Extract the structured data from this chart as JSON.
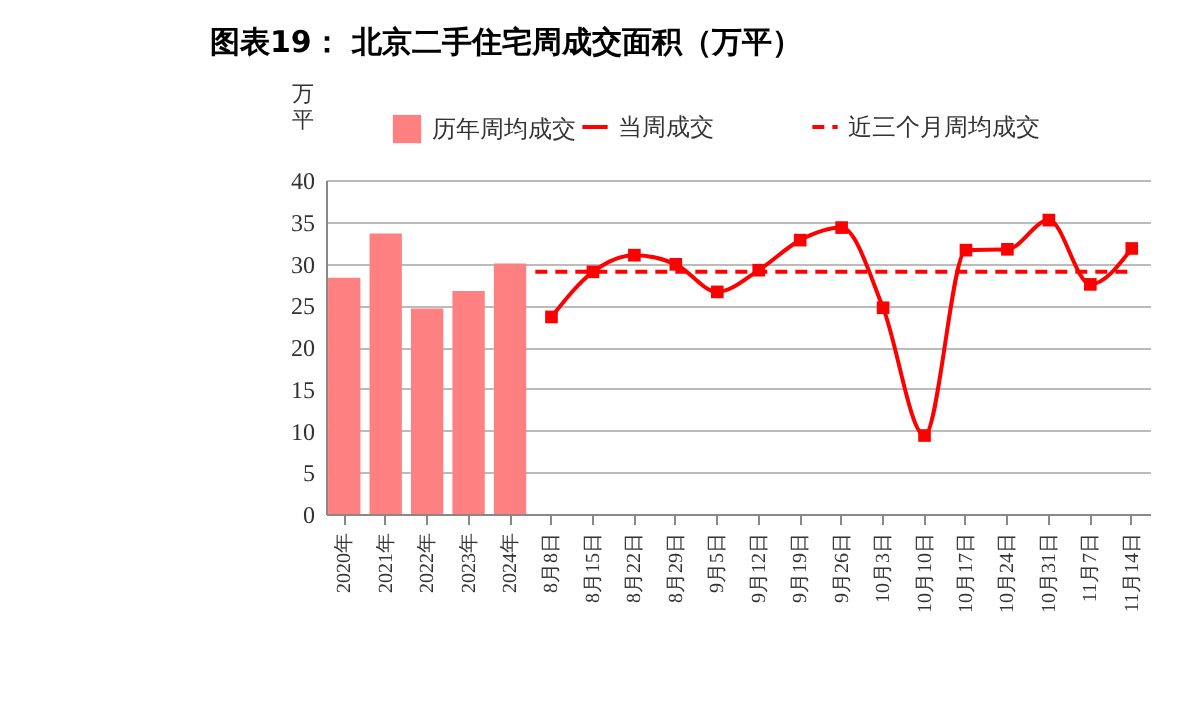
{
  "chart_data": {
    "type": "bar",
    "title": "图表19：  北京二手住宅周成交面积（万平）",
    "ylabel": "万平",
    "categories": [
      "2020年",
      "2021年",
      "2022年",
      "2023年",
      "2024年",
      "8月8日",
      "8月15日",
      "8月22日",
      "8月29日",
      "9月5日",
      "9月12日",
      "9月19日",
      "9月26日",
      "10月3日",
      "10月10日",
      "10月17日",
      "10月24日",
      "10月31日",
      "11月7日",
      "11月14日"
    ],
    "series": [
      {
        "name": "历年周均成交",
        "color": "#ff8080",
        "values": [
          28.3,
          33.6,
          24.6,
          26.7,
          30.0,
          null,
          null,
          null,
          null,
          null,
          null,
          null,
          null,
          null,
          null,
          null,
          null,
          null,
          null,
          null
        ]
      },
      {
        "name": "当周成交",
        "type": "line",
        "color": "#ff0000",
        "values": [
          null,
          null,
          null,
          null,
          null,
          23.6,
          29.0,
          31.0,
          29.9,
          26.6,
          29.2,
          32.8,
          34.3,
          24.7,
          9.4,
          31.6,
          31.7,
          35.2,
          27.5,
          31.8
        ]
      }
    ],
    "ref_lines": [
      {
        "axis": "y",
        "value": 29,
        "label": "近三个月周均成交",
        "color": "#ff0000",
        "line_style": "dashed"
      }
    ],
    "ylim": [
      0,
      40
    ],
    "yticks": [
      0,
      5,
      10,
      15,
      20,
      25,
      30,
      35,
      40
    ],
    "grid": "y",
    "legend": "top",
    "marker": "square",
    "line_style": "solid"
  }
}
